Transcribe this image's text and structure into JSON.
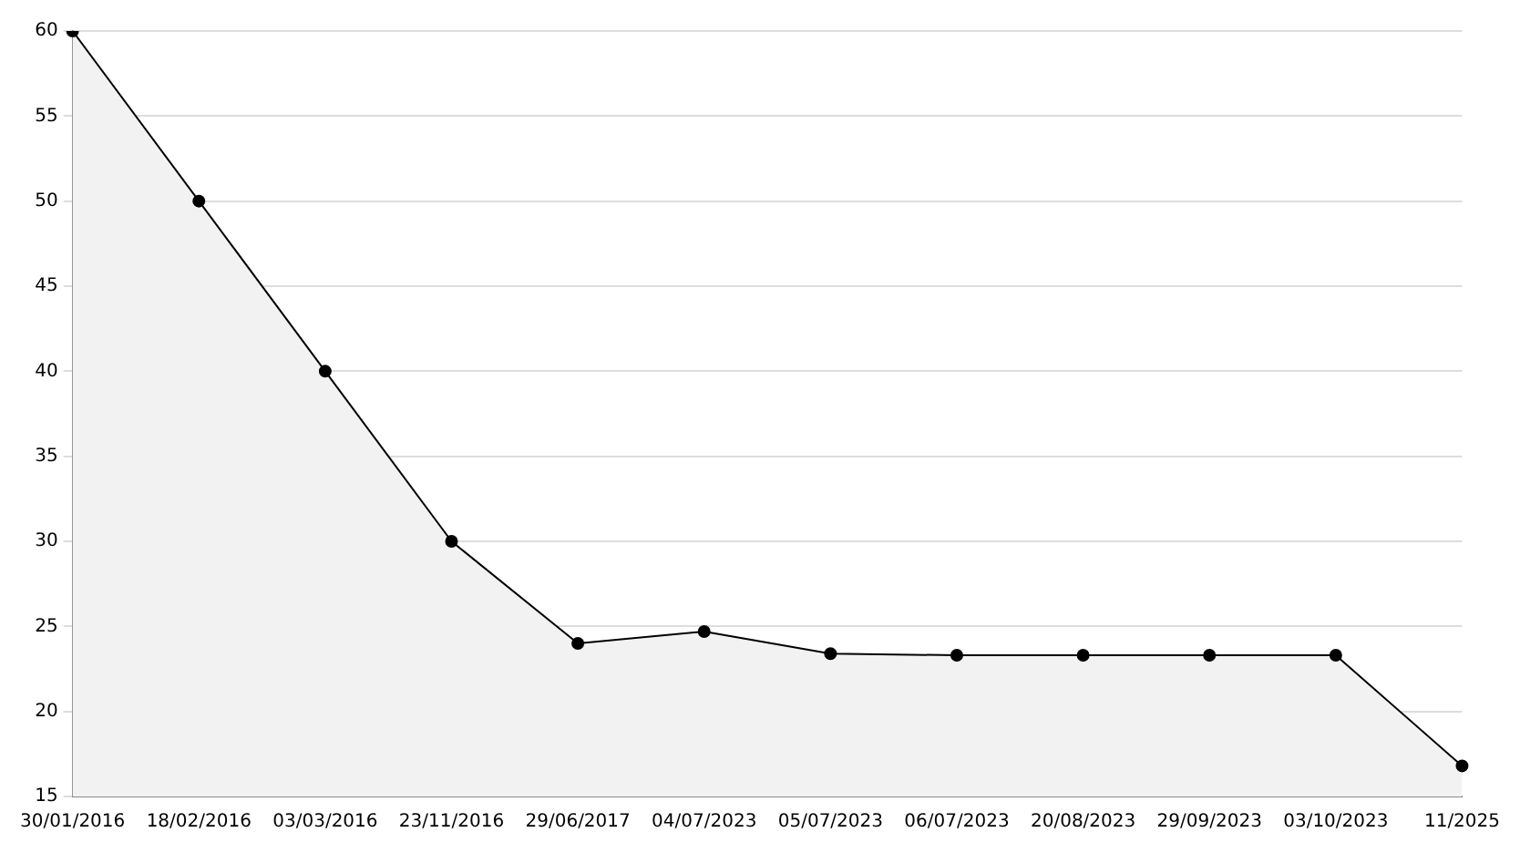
{
  "chart_data": {
    "type": "area",
    "categories": [
      "30/01/2016",
      "18/02/2016",
      "03/03/2016",
      "23/11/2016",
      "29/06/2017",
      "04/07/2023",
      "05/07/2023",
      "06/07/2023",
      "20/08/2023",
      "29/09/2023",
      "03/10/2023",
      "11/2025"
    ],
    "series": [
      {
        "color": "#000000",
        "values": [
          60,
          50,
          40,
          30,
          24,
          24.7,
          23.4,
          23.3,
          23.3,
          23.3,
          23.3,
          16.8
        ]
      }
    ],
    "ylim": [
      15,
      60
    ],
    "yticks": [
      15,
      20,
      25,
      30,
      35,
      40,
      45,
      50,
      55,
      60
    ],
    "grid": "y",
    "marker": "circle",
    "line_style": "solid",
    "legend": false
  }
}
